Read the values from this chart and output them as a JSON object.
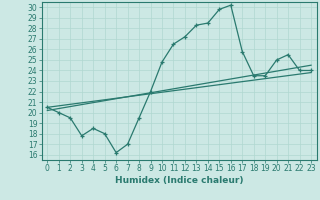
{
  "xlabel": "Humidex (Indice chaleur)",
  "background_color": "#cce8e4",
  "line_color": "#2a7a6f",
  "xlim": [
    -0.5,
    23.5
  ],
  "ylim": [
    15.5,
    30.5
  ],
  "yticks": [
    16,
    17,
    18,
    19,
    20,
    21,
    22,
    23,
    24,
    25,
    26,
    27,
    28,
    29,
    30
  ],
  "xticks": [
    0,
    1,
    2,
    3,
    4,
    5,
    6,
    7,
    8,
    9,
    10,
    11,
    12,
    13,
    14,
    15,
    16,
    17,
    18,
    19,
    20,
    21,
    22,
    23
  ],
  "line1_x": [
    0,
    1,
    2,
    3,
    4,
    5,
    6,
    7,
    8,
    9,
    10,
    11,
    12,
    13,
    14,
    15,
    16,
    17,
    18,
    19,
    20,
    21,
    22,
    23
  ],
  "line1_y": [
    20.5,
    20.0,
    19.5,
    17.8,
    18.5,
    18.0,
    16.2,
    17.0,
    19.5,
    22.0,
    24.8,
    26.5,
    27.2,
    28.3,
    28.5,
    29.8,
    30.2,
    25.8,
    23.5,
    23.5,
    25.0,
    25.5,
    24.0,
    24.0
  ],
  "line2_x": [
    0,
    23
  ],
  "line2_y": [
    20.2,
    24.5
  ],
  "line3_x": [
    0,
    23
  ],
  "line3_y": [
    20.5,
    23.8
  ],
  "grid_color": "#b0d8d0",
  "tick_fontsize": 5.5,
  "xlabel_fontsize": 6.5
}
